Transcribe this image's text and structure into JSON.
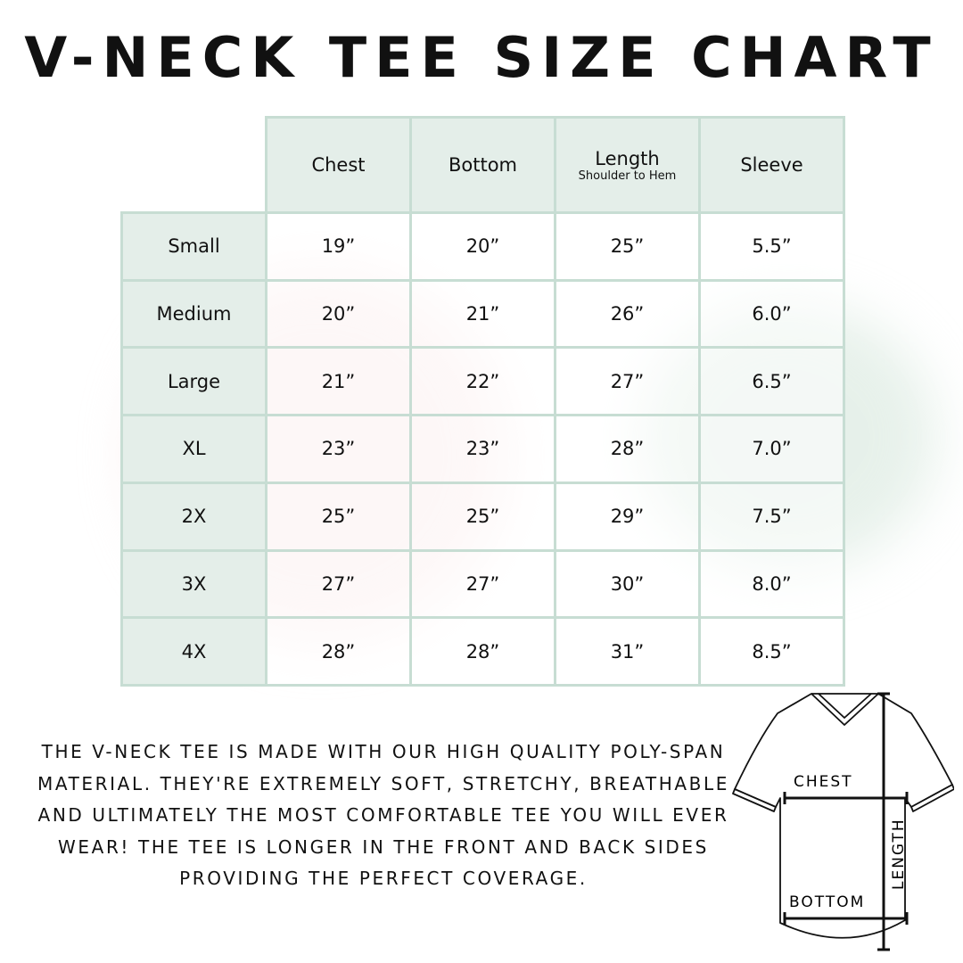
{
  "title": "V-NECK TEE SIZE CHART",
  "table": {
    "headers": [
      {
        "label": "Chest"
      },
      {
        "label": "Bottom"
      },
      {
        "label": "Length",
        "sub": "Shoulder to Hem"
      },
      {
        "label": "Sleeve"
      }
    ],
    "rows": [
      {
        "size": "Small",
        "values": [
          "19”",
          "20”",
          "25”",
          "5.5”"
        ]
      },
      {
        "size": "Medium",
        "values": [
          "20”",
          "21”",
          "26”",
          "6.0”"
        ]
      },
      {
        "size": "Large",
        "values": [
          "21”",
          "22”",
          "27”",
          "6.5”"
        ]
      },
      {
        "size": "XL",
        "values": [
          "23”",
          "23”",
          "28”",
          "7.0”"
        ]
      },
      {
        "size": "2X",
        "values": [
          "25”",
          "25”",
          "29”",
          "7.5”"
        ]
      },
      {
        "size": "3X",
        "values": [
          "27”",
          "27”",
          "30”",
          "8.0”"
        ]
      },
      {
        "size": "4X",
        "values": [
          "28”",
          "28”",
          "31”",
          "8.5”"
        ]
      }
    ]
  },
  "description": "The V-neck tee is made with our high quality poly-span material. They're extremely soft, stretchy, breathable and ultimately the most comfortable tee you will ever wear! The tee is longer in the front and back sides providing the perfect coverage.",
  "diagram": {
    "chest": "CHEST",
    "bottom": "BOTTOM",
    "length": "LENGTH"
  },
  "colors": {
    "header_fill": "#e4eee9",
    "border": "#c7ddd3"
  }
}
